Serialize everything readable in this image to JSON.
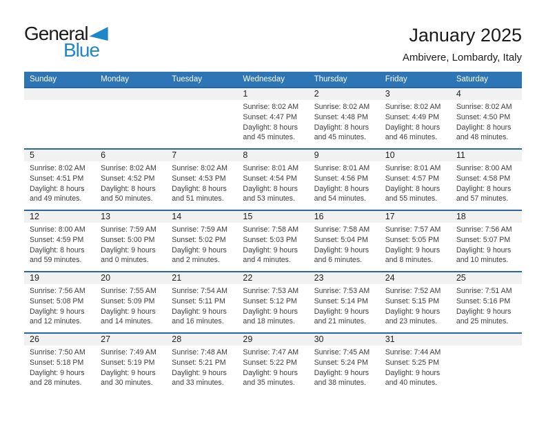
{
  "logo": {
    "word_top": "General",
    "word_bottom": "Blue"
  },
  "header": {
    "title": "January 2025",
    "subtitle": "Ambivere, Lombardy, Italy"
  },
  "colors": {
    "header_bar": "#2e75b6",
    "week_border": "#2766a5",
    "band_bg": "#f1f1f1",
    "logo_blue": "#1e87c9"
  },
  "calendar": {
    "day_headers": [
      "Sunday",
      "Monday",
      "Tuesday",
      "Wednesday",
      "Thursday",
      "Friday",
      "Saturday"
    ],
    "weeks": [
      [
        null,
        null,
        null,
        {
          "day": "1",
          "lines": [
            "Sunrise: 8:02 AM",
            "Sunset: 4:47 PM",
            "Daylight: 8 hours",
            "and 45 minutes."
          ]
        },
        {
          "day": "2",
          "lines": [
            "Sunrise: 8:02 AM",
            "Sunset: 4:48 PM",
            "Daylight: 8 hours",
            "and 45 minutes."
          ]
        },
        {
          "day": "3",
          "lines": [
            "Sunrise: 8:02 AM",
            "Sunset: 4:49 PM",
            "Daylight: 8 hours",
            "and 46 minutes."
          ]
        },
        {
          "day": "4",
          "lines": [
            "Sunrise: 8:02 AM",
            "Sunset: 4:50 PM",
            "Daylight: 8 hours",
            "and 48 minutes."
          ]
        }
      ],
      [
        {
          "day": "5",
          "lines": [
            "Sunrise: 8:02 AM",
            "Sunset: 4:51 PM",
            "Daylight: 8 hours",
            "and 49 minutes."
          ]
        },
        {
          "day": "6",
          "lines": [
            "Sunrise: 8:02 AM",
            "Sunset: 4:52 PM",
            "Daylight: 8 hours",
            "and 50 minutes."
          ]
        },
        {
          "day": "7",
          "lines": [
            "Sunrise: 8:02 AM",
            "Sunset: 4:53 PM",
            "Daylight: 8 hours",
            "and 51 minutes."
          ]
        },
        {
          "day": "8",
          "lines": [
            "Sunrise: 8:01 AM",
            "Sunset: 4:54 PM",
            "Daylight: 8 hours",
            "and 53 minutes."
          ]
        },
        {
          "day": "9",
          "lines": [
            "Sunrise: 8:01 AM",
            "Sunset: 4:56 PM",
            "Daylight: 8 hours",
            "and 54 minutes."
          ]
        },
        {
          "day": "10",
          "lines": [
            "Sunrise: 8:01 AM",
            "Sunset: 4:57 PM",
            "Daylight: 8 hours",
            "and 55 minutes."
          ]
        },
        {
          "day": "11",
          "lines": [
            "Sunrise: 8:00 AM",
            "Sunset: 4:58 PM",
            "Daylight: 8 hours",
            "and 57 minutes."
          ]
        }
      ],
      [
        {
          "day": "12",
          "lines": [
            "Sunrise: 8:00 AM",
            "Sunset: 4:59 PM",
            "Daylight: 8 hours",
            "and 59 minutes."
          ]
        },
        {
          "day": "13",
          "lines": [
            "Sunrise: 7:59 AM",
            "Sunset: 5:00 PM",
            "Daylight: 9 hours",
            "and 0 minutes."
          ]
        },
        {
          "day": "14",
          "lines": [
            "Sunrise: 7:59 AM",
            "Sunset: 5:02 PM",
            "Daylight: 9 hours",
            "and 2 minutes."
          ]
        },
        {
          "day": "15",
          "lines": [
            "Sunrise: 7:58 AM",
            "Sunset: 5:03 PM",
            "Daylight: 9 hours",
            "and 4 minutes."
          ]
        },
        {
          "day": "16",
          "lines": [
            "Sunrise: 7:58 AM",
            "Sunset: 5:04 PM",
            "Daylight: 9 hours",
            "and 6 minutes."
          ]
        },
        {
          "day": "17",
          "lines": [
            "Sunrise: 7:57 AM",
            "Sunset: 5:05 PM",
            "Daylight: 9 hours",
            "and 8 minutes."
          ]
        },
        {
          "day": "18",
          "lines": [
            "Sunrise: 7:56 AM",
            "Sunset: 5:07 PM",
            "Daylight: 9 hours",
            "and 10 minutes."
          ]
        }
      ],
      [
        {
          "day": "19",
          "lines": [
            "Sunrise: 7:56 AM",
            "Sunset: 5:08 PM",
            "Daylight: 9 hours",
            "and 12 minutes."
          ]
        },
        {
          "day": "20",
          "lines": [
            "Sunrise: 7:55 AM",
            "Sunset: 5:09 PM",
            "Daylight: 9 hours",
            "and 14 minutes."
          ]
        },
        {
          "day": "21",
          "lines": [
            "Sunrise: 7:54 AM",
            "Sunset: 5:11 PM",
            "Daylight: 9 hours",
            "and 16 minutes."
          ]
        },
        {
          "day": "22",
          "lines": [
            "Sunrise: 7:53 AM",
            "Sunset: 5:12 PM",
            "Daylight: 9 hours",
            "and 18 minutes."
          ]
        },
        {
          "day": "23",
          "lines": [
            "Sunrise: 7:53 AM",
            "Sunset: 5:14 PM",
            "Daylight: 9 hours",
            "and 21 minutes."
          ]
        },
        {
          "day": "24",
          "lines": [
            "Sunrise: 7:52 AM",
            "Sunset: 5:15 PM",
            "Daylight: 9 hours",
            "and 23 minutes."
          ]
        },
        {
          "day": "25",
          "lines": [
            "Sunrise: 7:51 AM",
            "Sunset: 5:16 PM",
            "Daylight: 9 hours",
            "and 25 minutes."
          ]
        }
      ],
      [
        {
          "day": "26",
          "lines": [
            "Sunrise: 7:50 AM",
            "Sunset: 5:18 PM",
            "Daylight: 9 hours",
            "and 28 minutes."
          ]
        },
        {
          "day": "27",
          "lines": [
            "Sunrise: 7:49 AM",
            "Sunset: 5:19 PM",
            "Daylight: 9 hours",
            "and 30 minutes."
          ]
        },
        {
          "day": "28",
          "lines": [
            "Sunrise: 7:48 AM",
            "Sunset: 5:21 PM",
            "Daylight: 9 hours",
            "and 33 minutes."
          ]
        },
        {
          "day": "29",
          "lines": [
            "Sunrise: 7:47 AM",
            "Sunset: 5:22 PM",
            "Daylight: 9 hours",
            "and 35 minutes."
          ]
        },
        {
          "day": "30",
          "lines": [
            "Sunrise: 7:45 AM",
            "Sunset: 5:24 PM",
            "Daylight: 9 hours",
            "and 38 minutes."
          ]
        },
        {
          "day": "31",
          "lines": [
            "Sunrise: 7:44 AM",
            "Sunset: 5:25 PM",
            "Daylight: 9 hours",
            "and 40 minutes."
          ]
        },
        null
      ]
    ]
  }
}
